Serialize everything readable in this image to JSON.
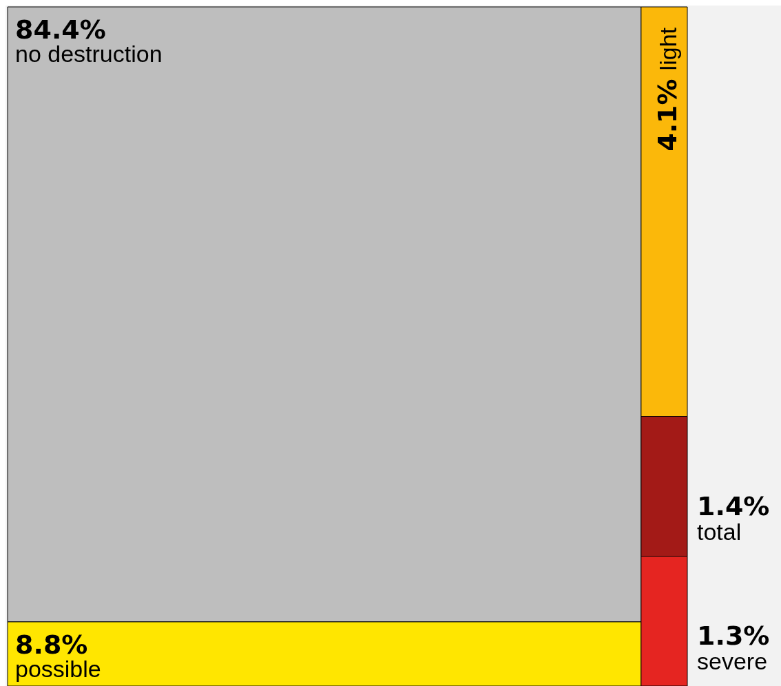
{
  "chart_data": {
    "type": "other",
    "categories": [
      "no destruction",
      "possible",
      "light",
      "total",
      "severe"
    ],
    "values": [
      84.4,
      8.8,
      4.1,
      1.4,
      1.3
    ],
    "value_labels": [
      "84.4%",
      "8.8%",
      "4.1%",
      "1.4%",
      "1.3%"
    ],
    "colors": [
      "#bebebe",
      "#ffe600",
      "#fbb80a",
      "#a31a17",
      "#e52521"
    ]
  }
}
